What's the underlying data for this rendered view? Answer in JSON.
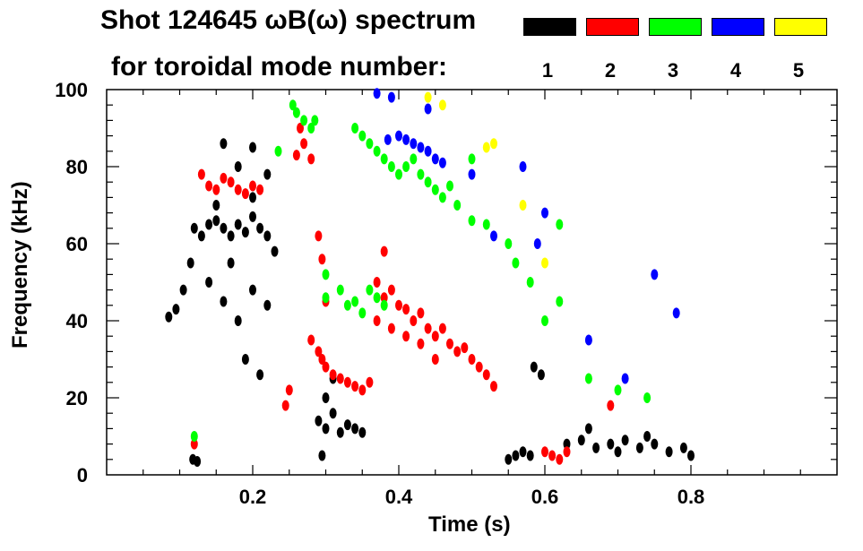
{
  "chart_data": {
    "type": "scatter",
    "title": "Shot 124645 ωB(ω) spectrum",
    "subtitle": "for toroidal mode number:",
    "xlabel": "Time (s)",
    "ylabel": "Frequency (kHz)",
    "xlim": [
      0.0,
      1.0
    ],
    "ylim": [
      0,
      100
    ],
    "x_ticks": [
      0.2,
      0.4,
      0.6,
      0.8
    ],
    "x_tick_labels": [
      "0.2",
      "0.4",
      "0.6",
      "0.8"
    ],
    "y_ticks": [
      0,
      20,
      40,
      60,
      80,
      100
    ],
    "y_tick_labels": [
      "0",
      "20",
      "40",
      "60",
      "80",
      "100"
    ],
    "legend": {
      "placement": "top-right",
      "entries": [
        {
          "label": "1",
          "color": "#000000"
        },
        {
          "label": "2",
          "color": "#ff0000"
        },
        {
          "label": "3",
          "color": "#00ff00"
        },
        {
          "label": "4",
          "color": "#0000ff"
        },
        {
          "label": "5",
          "color": "#ffff00"
        }
      ]
    },
    "series": [
      {
        "name": "1",
        "color": "#000000",
        "points": [
          [
            0.085,
            41
          ],
          [
            0.095,
            43
          ],
          [
            0.105,
            48
          ],
          [
            0.115,
            55
          ],
          [
            0.12,
            64
          ],
          [
            0.13,
            62
          ],
          [
            0.14,
            65
          ],
          [
            0.15,
            66
          ],
          [
            0.16,
            64
          ],
          [
            0.17,
            62
          ],
          [
            0.18,
            65
          ],
          [
            0.19,
            63
          ],
          [
            0.2,
            67
          ],
          [
            0.21,
            64
          ],
          [
            0.22,
            62
          ],
          [
            0.23,
            58
          ],
          [
            0.14,
            50
          ],
          [
            0.16,
            45
          ],
          [
            0.18,
            40
          ],
          [
            0.2,
            48
          ],
          [
            0.22,
            44
          ],
          [
            0.19,
            30
          ],
          [
            0.21,
            26
          ],
          [
            0.17,
            55
          ],
          [
            0.15,
            70
          ],
          [
            0.18,
            80
          ],
          [
            0.2,
            85
          ],
          [
            0.16,
            86
          ],
          [
            0.22,
            78
          ],
          [
            0.2,
            72
          ],
          [
            0.118,
            4
          ],
          [
            0.124,
            3.5
          ],
          [
            0.29,
            14
          ],
          [
            0.3,
            12
          ],
          [
            0.31,
            16
          ],
          [
            0.32,
            11
          ],
          [
            0.33,
            13
          ],
          [
            0.34,
            12
          ],
          [
            0.35,
            11
          ],
          [
            0.3,
            20
          ],
          [
            0.31,
            25
          ],
          [
            0.295,
            5
          ],
          [
            0.55,
            4
          ],
          [
            0.56,
            5
          ],
          [
            0.57,
            6
          ],
          [
            0.58,
            5
          ],
          [
            0.585,
            28
          ],
          [
            0.595,
            26
          ],
          [
            0.63,
            8
          ],
          [
            0.65,
            9
          ],
          [
            0.67,
            7
          ],
          [
            0.69,
            8
          ],
          [
            0.71,
            9
          ],
          [
            0.73,
            7
          ],
          [
            0.75,
            8
          ],
          [
            0.77,
            6
          ],
          [
            0.79,
            7
          ],
          [
            0.8,
            5
          ],
          [
            0.66,
            12
          ],
          [
            0.7,
            6
          ],
          [
            0.74,
            10
          ]
        ]
      },
      {
        "name": "2",
        "color": "#ff0000",
        "points": [
          [
            0.13,
            78
          ],
          [
            0.14,
            75
          ],
          [
            0.15,
            74
          ],
          [
            0.16,
            77
          ],
          [
            0.17,
            76
          ],
          [
            0.18,
            74
          ],
          [
            0.19,
            73
          ],
          [
            0.2,
            75
          ],
          [
            0.21,
            74
          ],
          [
            0.245,
            18
          ],
          [
            0.25,
            22
          ],
          [
            0.26,
            83
          ],
          [
            0.265,
            90
          ],
          [
            0.27,
            86
          ],
          [
            0.28,
            82
          ],
          [
            0.29,
            62
          ],
          [
            0.295,
            56
          ],
          [
            0.3,
            45
          ],
          [
            0.29,
            32
          ],
          [
            0.28,
            35
          ],
          [
            0.295,
            30
          ],
          [
            0.3,
            28
          ],
          [
            0.31,
            26
          ],
          [
            0.32,
            25
          ],
          [
            0.33,
            24
          ],
          [
            0.34,
            23
          ],
          [
            0.35,
            22
          ],
          [
            0.36,
            24
          ],
          [
            0.37,
            50
          ],
          [
            0.38,
            46
          ],
          [
            0.38,
            58
          ],
          [
            0.39,
            48
          ],
          [
            0.4,
            44
          ],
          [
            0.41,
            43
          ],
          [
            0.42,
            40
          ],
          [
            0.43,
            42
          ],
          [
            0.44,
            38
          ],
          [
            0.45,
            36
          ],
          [
            0.46,
            38
          ],
          [
            0.47,
            34
          ],
          [
            0.48,
            32
          ],
          [
            0.49,
            33
          ],
          [
            0.5,
            30
          ],
          [
            0.51,
            28
          ],
          [
            0.52,
            26
          ],
          [
            0.39,
            38
          ],
          [
            0.41,
            36
          ],
          [
            0.43,
            34
          ],
          [
            0.45,
            30
          ],
          [
            0.37,
            40
          ],
          [
            0.53,
            23
          ],
          [
            0.6,
            6
          ],
          [
            0.61,
            5
          ],
          [
            0.62,
            4
          ],
          [
            0.63,
            6
          ],
          [
            0.12,
            8
          ],
          [
            0.69,
            18
          ]
        ]
      },
      {
        "name": "3",
        "color": "#00ff00",
        "points": [
          [
            0.255,
            96
          ],
          [
            0.26,
            94
          ],
          [
            0.27,
            92
          ],
          [
            0.28,
            90
          ],
          [
            0.285,
            92
          ],
          [
            0.235,
            84
          ],
          [
            0.34,
            90
          ],
          [
            0.35,
            88
          ],
          [
            0.36,
            86
          ],
          [
            0.37,
            84
          ],
          [
            0.38,
            82
          ],
          [
            0.39,
            80
          ],
          [
            0.4,
            78
          ],
          [
            0.41,
            80
          ],
          [
            0.42,
            82
          ],
          [
            0.43,
            78
          ],
          [
            0.44,
            76
          ],
          [
            0.45,
            74
          ],
          [
            0.46,
            72
          ],
          [
            0.47,
            75
          ],
          [
            0.48,
            70
          ],
          [
            0.5,
            66
          ],
          [
            0.3,
            52
          ],
          [
            0.32,
            48
          ],
          [
            0.33,
            44
          ],
          [
            0.34,
            45
          ],
          [
            0.35,
            42
          ],
          [
            0.36,
            48
          ],
          [
            0.37,
            46
          ],
          [
            0.38,
            44
          ],
          [
            0.3,
            46
          ],
          [
            0.52,
            65
          ],
          [
            0.55,
            60
          ],
          [
            0.56,
            55
          ],
          [
            0.58,
            50
          ],
          [
            0.6,
            40
          ],
          [
            0.62,
            65
          ],
          [
            0.62,
            45
          ],
          [
            0.66,
            25
          ],
          [
            0.7,
            22
          ],
          [
            0.74,
            20
          ],
          [
            0.12,
            10
          ],
          [
            0.5,
            82
          ]
        ]
      },
      {
        "name": "4",
        "color": "#0000ff",
        "points": [
          [
            0.385,
            87
          ],
          [
            0.4,
            88
          ],
          [
            0.41,
            87
          ],
          [
            0.42,
            86
          ],
          [
            0.43,
            85
          ],
          [
            0.44,
            84
          ],
          [
            0.45,
            82
          ],
          [
            0.46,
            81
          ],
          [
            0.37,
            99
          ],
          [
            0.39,
            98
          ],
          [
            0.44,
            95
          ],
          [
            0.5,
            78
          ],
          [
            0.53,
            62
          ],
          [
            0.57,
            80
          ],
          [
            0.6,
            68
          ],
          [
            0.59,
            60
          ],
          [
            0.66,
            35
          ],
          [
            0.71,
            25
          ],
          [
            0.75,
            52
          ],
          [
            0.78,
            42
          ]
        ]
      },
      {
        "name": "5",
        "color": "#ffff00",
        "points": [
          [
            0.44,
            98
          ],
          [
            0.46,
            96
          ],
          [
            0.52,
            85
          ],
          [
            0.53,
            86
          ],
          [
            0.57,
            70
          ],
          [
            0.6,
            55
          ]
        ]
      }
    ]
  }
}
